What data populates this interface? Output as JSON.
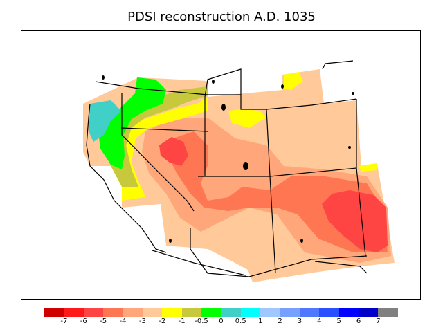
{
  "title": "PDSI reconstruction A.D. 1035",
  "colorbar": {
    "colors": [
      "#d00000",
      "#ff1a1a",
      "#ff4444",
      "#ff7752",
      "#ffa77a",
      "#ffc99a",
      "#ffff00",
      "#c8c83c",
      "#00ff00",
      "#40d0c8",
      "#00ffff",
      "#a0c8ff",
      "#78a0ff",
      "#5078ff",
      "#2850ff",
      "#0000ff",
      "#0000c8",
      "#808080"
    ],
    "labels": [
      "-7",
      "-6",
      "-5",
      "-4",
      "-3",
      "-2",
      "-1",
      "-0.5",
      "0",
      "0.5",
      "1",
      "2",
      "3",
      "4",
      "5",
      "6",
      "7"
    ]
  },
  "legend_colors": {
    "peach": "#ffc99a",
    "light_orange": "#ffa77a",
    "orange": "#ff7752",
    "red": "#ff4444",
    "yellow": "#ffff00",
    "olive": "#c8c83c",
    "green": "#00ff00",
    "teal": "#40d0c8"
  }
}
